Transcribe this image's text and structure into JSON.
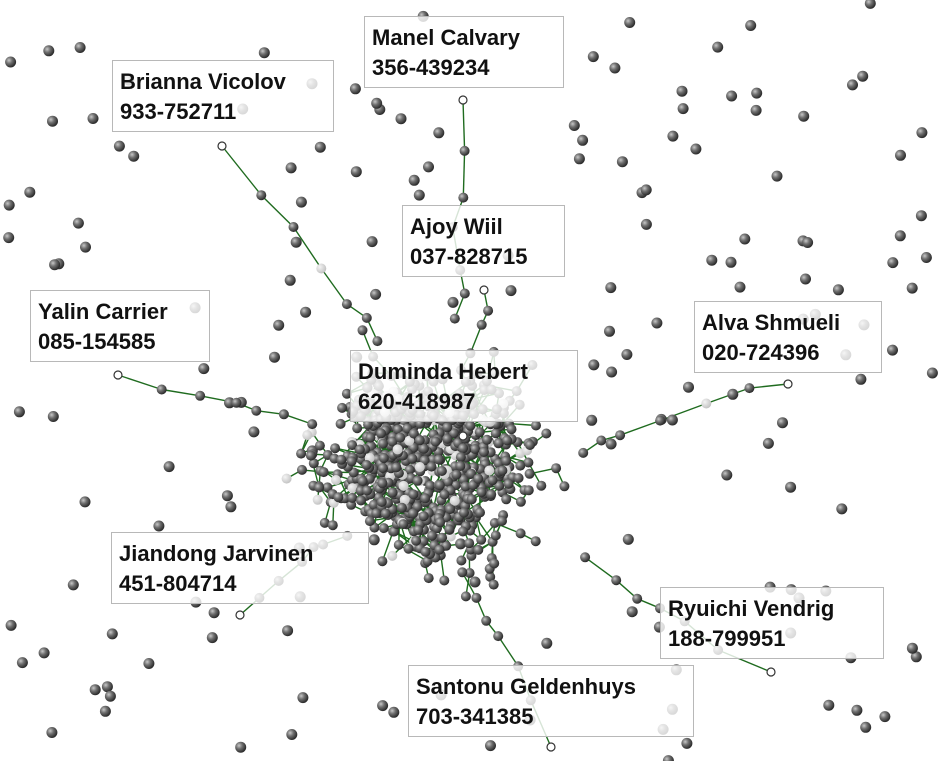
{
  "graph": {
    "edge_color": "#1f6b1f",
    "node_color": "#5a5a5a",
    "anchor_color": "#ffffff"
  },
  "contacts": [
    {
      "name": "Manel Calvary",
      "phone": "356-439234"
    },
    {
      "name": "Brianna Vicolov",
      "phone": "933-752711"
    },
    {
      "name": "Ajoy Wiil",
      "phone": "037-828715"
    },
    {
      "name": "Yalin Carrier",
      "phone": "085-154585"
    },
    {
      "name": "Alva Shmueli",
      "phone": "020-724396"
    },
    {
      "name": "Duminda Hebert",
      "phone": "620-418987"
    },
    {
      "name": "Jiandong Jarvinen",
      "phone": "451-804714"
    },
    {
      "name": "Ryuichi Vendrig",
      "phone": "188-799951"
    },
    {
      "name": "Santonu Geldenhuys",
      "phone": "703-341385"
    }
  ]
}
